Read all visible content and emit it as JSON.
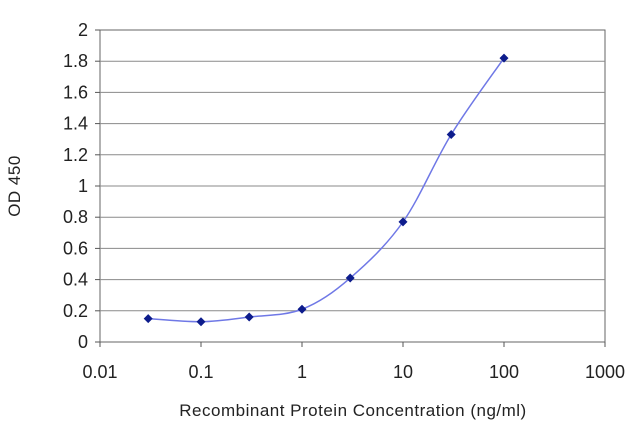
{
  "chart_data": {
    "type": "scatter",
    "title": "",
    "xlabel": "Recombinant Protein Concentration (ng/ml)",
    "ylabel": "OD 450",
    "x_scale": "log",
    "xlim": [
      0.01,
      1000
    ],
    "ylim": [
      0,
      2
    ],
    "grid": "horizontal",
    "legend": "none",
    "x_ticks": [
      "0.01",
      "0.1",
      "1",
      "10",
      "100",
      "1000"
    ],
    "x_tick_values": [
      0.01,
      0.1,
      1,
      10,
      100,
      1000
    ],
    "y_ticks": [
      "0",
      "0.2",
      "0.4",
      "0.6",
      "0.8",
      "1",
      "1.2",
      "1.4",
      "1.6",
      "1.8",
      "2"
    ],
    "y_tick_values": [
      0,
      0.2,
      0.4,
      0.6,
      0.8,
      1,
      1.2,
      1.4,
      1.6,
      1.8,
      2
    ],
    "series": [
      {
        "x": [
          0.03,
          0.1,
          0.3,
          1,
          3,
          10,
          30,
          100
        ],
        "y": [
          0.15,
          0.13,
          0.16,
          0.21,
          0.41,
          0.77,
          1.33,
          1.82
        ],
        "color": "#0d1c8c",
        "line_color": "#6f78e6"
      }
    ]
  }
}
